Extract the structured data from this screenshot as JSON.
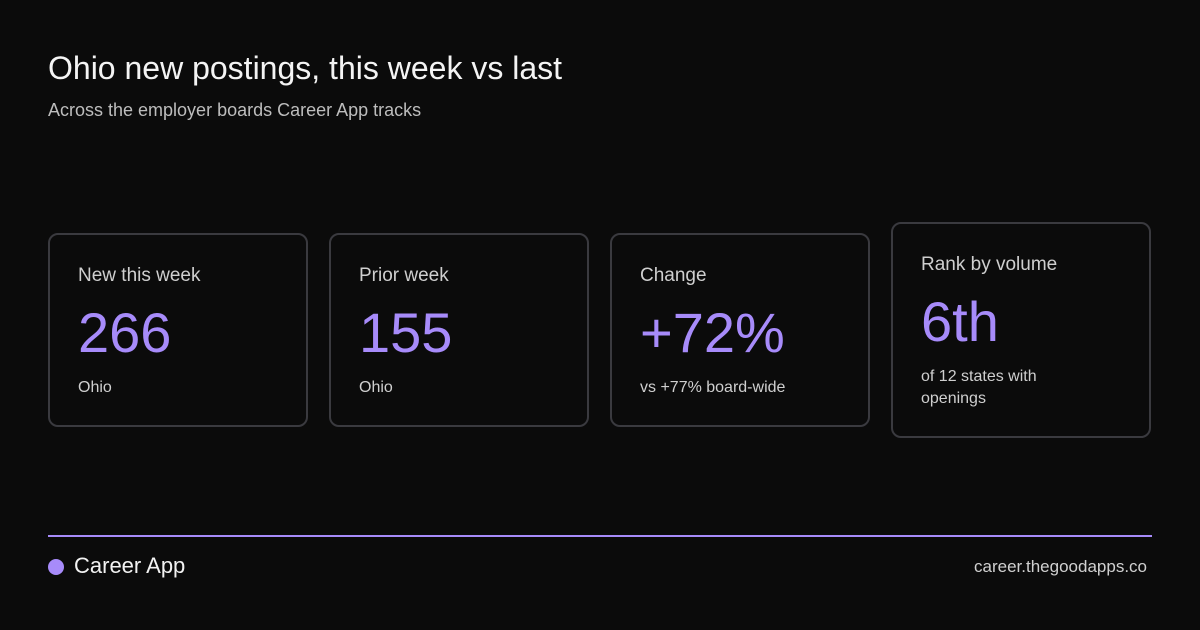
{
  "header": {
    "title": "Ohio new postings, this week vs last",
    "subtitle": "Across the employer boards Career App tracks"
  },
  "cards": [
    {
      "label": "New this week",
      "value": "266",
      "note": "Ohio"
    },
    {
      "label": "Prior week",
      "value": "155",
      "note": "Ohio"
    },
    {
      "label": "Change",
      "value": "+72%",
      "note": "vs +77% board-wide"
    },
    {
      "label": "Rank by volume",
      "value": "6th",
      "note": "of 12 states with openings"
    }
  ],
  "footer": {
    "brand": "Career App",
    "url": "career.thegoodapps.co"
  }
}
